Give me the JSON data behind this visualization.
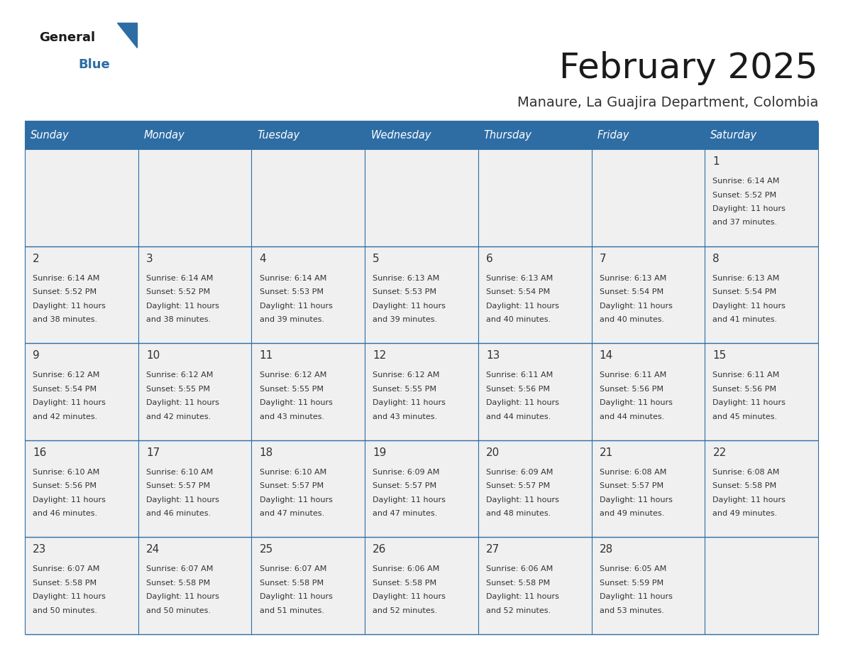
{
  "title": "February 2025",
  "subtitle": "Manaure, La Guajira Department, Colombia",
  "days_of_week": [
    "Sunday",
    "Monday",
    "Tuesday",
    "Wednesday",
    "Thursday",
    "Friday",
    "Saturday"
  ],
  "header_bg": "#2E6DA4",
  "header_text": "#FFFFFF",
  "cell_bg": "#F0F0F0",
  "line_color": "#2E6DA4",
  "day_num_color": "#333333",
  "text_color": "#333333",
  "title_color": "#1a1a1a",
  "subtitle_color": "#333333",
  "logo_general_color": "#1a1a1a",
  "logo_blue_color": "#2E6DA4",
  "calendar_data": [
    {
      "day": 1,
      "col": 6,
      "row": 0,
      "sunrise": "6:14 AM",
      "sunset": "5:52 PM",
      "daylight_hours": 11,
      "daylight_minutes": 37
    },
    {
      "day": 2,
      "col": 0,
      "row": 1,
      "sunrise": "6:14 AM",
      "sunset": "5:52 PM",
      "daylight_hours": 11,
      "daylight_minutes": 38
    },
    {
      "day": 3,
      "col": 1,
      "row": 1,
      "sunrise": "6:14 AM",
      "sunset": "5:52 PM",
      "daylight_hours": 11,
      "daylight_minutes": 38
    },
    {
      "day": 4,
      "col": 2,
      "row": 1,
      "sunrise": "6:14 AM",
      "sunset": "5:53 PM",
      "daylight_hours": 11,
      "daylight_minutes": 39
    },
    {
      "day": 5,
      "col": 3,
      "row": 1,
      "sunrise": "6:13 AM",
      "sunset": "5:53 PM",
      "daylight_hours": 11,
      "daylight_minutes": 39
    },
    {
      "day": 6,
      "col": 4,
      "row": 1,
      "sunrise": "6:13 AM",
      "sunset": "5:54 PM",
      "daylight_hours": 11,
      "daylight_minutes": 40
    },
    {
      "day": 7,
      "col": 5,
      "row": 1,
      "sunrise": "6:13 AM",
      "sunset": "5:54 PM",
      "daylight_hours": 11,
      "daylight_minutes": 40
    },
    {
      "day": 8,
      "col": 6,
      "row": 1,
      "sunrise": "6:13 AM",
      "sunset": "5:54 PM",
      "daylight_hours": 11,
      "daylight_minutes": 41
    },
    {
      "day": 9,
      "col": 0,
      "row": 2,
      "sunrise": "6:12 AM",
      "sunset": "5:54 PM",
      "daylight_hours": 11,
      "daylight_minutes": 42
    },
    {
      "day": 10,
      "col": 1,
      "row": 2,
      "sunrise": "6:12 AM",
      "sunset": "5:55 PM",
      "daylight_hours": 11,
      "daylight_minutes": 42
    },
    {
      "day": 11,
      "col": 2,
      "row": 2,
      "sunrise": "6:12 AM",
      "sunset": "5:55 PM",
      "daylight_hours": 11,
      "daylight_minutes": 43
    },
    {
      "day": 12,
      "col": 3,
      "row": 2,
      "sunrise": "6:12 AM",
      "sunset": "5:55 PM",
      "daylight_hours": 11,
      "daylight_minutes": 43
    },
    {
      "day": 13,
      "col": 4,
      "row": 2,
      "sunrise": "6:11 AM",
      "sunset": "5:56 PM",
      "daylight_hours": 11,
      "daylight_minutes": 44
    },
    {
      "day": 14,
      "col": 5,
      "row": 2,
      "sunrise": "6:11 AM",
      "sunset": "5:56 PM",
      "daylight_hours": 11,
      "daylight_minutes": 44
    },
    {
      "day": 15,
      "col": 6,
      "row": 2,
      "sunrise": "6:11 AM",
      "sunset": "5:56 PM",
      "daylight_hours": 11,
      "daylight_minutes": 45
    },
    {
      "day": 16,
      "col": 0,
      "row": 3,
      "sunrise": "6:10 AM",
      "sunset": "5:56 PM",
      "daylight_hours": 11,
      "daylight_minutes": 46
    },
    {
      "day": 17,
      "col": 1,
      "row": 3,
      "sunrise": "6:10 AM",
      "sunset": "5:57 PM",
      "daylight_hours": 11,
      "daylight_minutes": 46
    },
    {
      "day": 18,
      "col": 2,
      "row": 3,
      "sunrise": "6:10 AM",
      "sunset": "5:57 PM",
      "daylight_hours": 11,
      "daylight_minutes": 47
    },
    {
      "day": 19,
      "col": 3,
      "row": 3,
      "sunrise": "6:09 AM",
      "sunset": "5:57 PM",
      "daylight_hours": 11,
      "daylight_minutes": 47
    },
    {
      "day": 20,
      "col": 4,
      "row": 3,
      "sunrise": "6:09 AM",
      "sunset": "5:57 PM",
      "daylight_hours": 11,
      "daylight_minutes": 48
    },
    {
      "day": 21,
      "col": 5,
      "row": 3,
      "sunrise": "6:08 AM",
      "sunset": "5:57 PM",
      "daylight_hours": 11,
      "daylight_minutes": 49
    },
    {
      "day": 22,
      "col": 6,
      "row": 3,
      "sunrise": "6:08 AM",
      "sunset": "5:58 PM",
      "daylight_hours": 11,
      "daylight_minutes": 49
    },
    {
      "day": 23,
      "col": 0,
      "row": 4,
      "sunrise": "6:07 AM",
      "sunset": "5:58 PM",
      "daylight_hours": 11,
      "daylight_minutes": 50
    },
    {
      "day": 24,
      "col": 1,
      "row": 4,
      "sunrise": "6:07 AM",
      "sunset": "5:58 PM",
      "daylight_hours": 11,
      "daylight_minutes": 50
    },
    {
      "day": 25,
      "col": 2,
      "row": 4,
      "sunrise": "6:07 AM",
      "sunset": "5:58 PM",
      "daylight_hours": 11,
      "daylight_minutes": 51
    },
    {
      "day": 26,
      "col": 3,
      "row": 4,
      "sunrise": "6:06 AM",
      "sunset": "5:58 PM",
      "daylight_hours": 11,
      "daylight_minutes": 52
    },
    {
      "day": 27,
      "col": 4,
      "row": 4,
      "sunrise": "6:06 AM",
      "sunset": "5:58 PM",
      "daylight_hours": 11,
      "daylight_minutes": 52
    },
    {
      "day": 28,
      "col": 5,
      "row": 4,
      "sunrise": "6:05 AM",
      "sunset": "5:59 PM",
      "daylight_hours": 11,
      "daylight_minutes": 53
    }
  ]
}
